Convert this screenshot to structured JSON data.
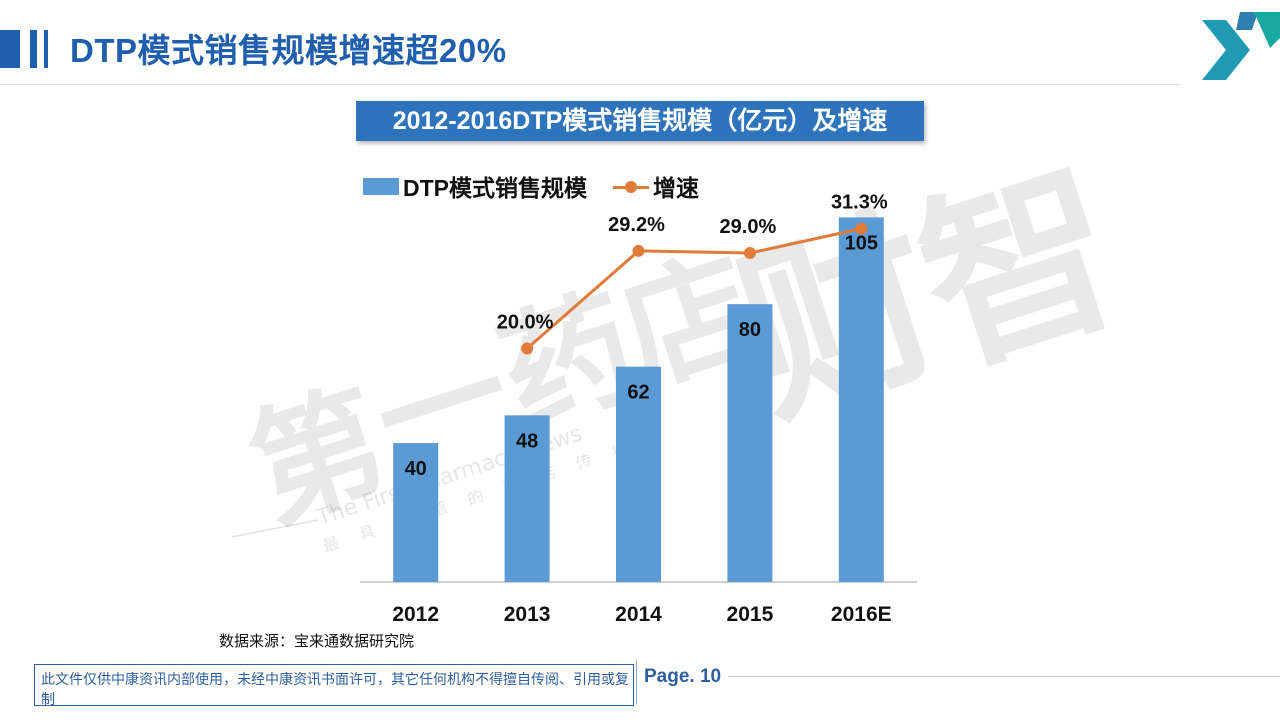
{
  "slide": {
    "title": "DTP模式销售规模增速超20%",
    "source": "数据来源：宝来通数据研究院",
    "footer_notice": "此文件仅供中康资讯内部使用，未经中康资讯书面许可，其它任何机构不得擅自传阅、引用或复制",
    "page_label": "Page. 10"
  },
  "watermark": {
    "chars": [
      "第",
      "一",
      "药",
      "店",
      "财",
      "智"
    ],
    "english": "The First Pharmacy News",
    "slogan": "最具价值的药店传播"
  },
  "colors": {
    "brand_blue": "#1f5fae",
    "bar_blue": "#5b9bd5",
    "growth_orange": "#e07b39"
  },
  "chart_data": {
    "type": "bar",
    "title": "2012-2016DTP模式销售规模（亿元）及增速",
    "categories": [
      "2012",
      "2013",
      "2014",
      "2015",
      "2016E"
    ],
    "series": [
      {
        "name": "DTP模式销售规模",
        "type": "bar",
        "values": [
          40,
          48,
          62,
          80,
          105
        ],
        "labels": [
          "40",
          "48",
          "62",
          "80",
          "105"
        ]
      },
      {
        "name": "增速",
        "type": "line",
        "values": [
          null,
          20.0,
          29.2,
          29.0,
          31.3
        ],
        "labels": [
          "",
          "20.0%",
          "29.2%",
          "29.0%",
          "31.3%"
        ]
      }
    ],
    "ylim": [
      0,
      110
    ],
    "y2lim": [
      -2,
      34
    ],
    "legend": "top-left",
    "grid": false,
    "xlabel": "",
    "ylabel": ""
  }
}
